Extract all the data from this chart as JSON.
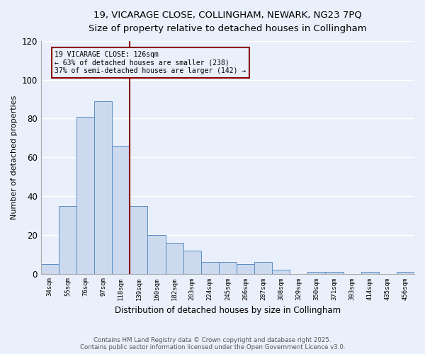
{
  "title_line1": "19, VICARAGE CLOSE, COLLINGHAM, NEWARK, NG23 7PQ",
  "title_line2": "Size of property relative to detached houses in Collingham",
  "xlabel": "Distribution of detached houses by size in Collingham",
  "ylabel": "Number of detached properties",
  "categories": [
    "34sqm",
    "55sqm",
    "76sqm",
    "97sqm",
    "118sqm",
    "139sqm",
    "160sqm",
    "182sqm",
    "203sqm",
    "224sqm",
    "245sqm",
    "266sqm",
    "287sqm",
    "308sqm",
    "329sqm",
    "350sqm",
    "371sqm",
    "393sqm",
    "414sqm",
    "435sqm",
    "456sqm"
  ],
  "values": [
    5,
    35,
    81,
    89,
    66,
    35,
    20,
    16,
    12,
    6,
    6,
    5,
    6,
    2,
    0,
    1,
    1,
    0,
    1,
    0,
    1
  ],
  "bar_color": "#ccd9ee",
  "bar_edge_color": "#5b8ec4",
  "vertical_line_x": 4.5,
  "vertical_line_color": "#8b0000",
  "annotation_line1": "19 VICARAGE CLOSE: 126sqm",
  "annotation_line2": "← 63% of detached houses are smaller (238)",
  "annotation_line3": "37% of semi-detached houses are larger (142) →",
  "ylim": [
    0,
    120
  ],
  "yticks": [
    0,
    20,
    40,
    60,
    80,
    100,
    120
  ],
  "bg_color": "#eaf0fb",
  "grid_color": "#ffffff",
  "footer_line1": "Contains HM Land Registry data © Crown copyright and database right 2025.",
  "footer_line2": "Contains public sector information licensed under the Open Government Licence v3.0."
}
